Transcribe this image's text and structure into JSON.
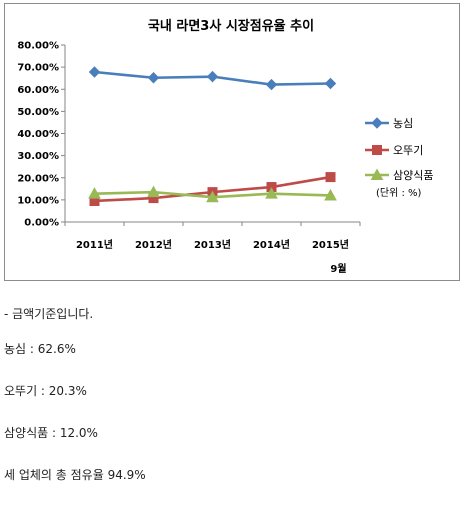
{
  "chart_data": {
    "type": "line",
    "title": "국내 라면3사 시장점유율 추이",
    "categories": [
      "2011년",
      "2012년",
      "2013년",
      "2014년",
      "2015년"
    ],
    "category_sublabels": [
      "",
      "",
      "",
      "",
      "9월"
    ],
    "ylim": [
      0,
      0.8
    ],
    "yticks": [
      "0.00%",
      "10.00%",
      "20.00%",
      "30.00%",
      "40.00%",
      "50.00%",
      "60.00%",
      "70.00%",
      "80.00%"
    ],
    "series": [
      {
        "name": "농심",
        "values": [
          0.678,
          0.652,
          0.657,
          0.621,
          0.626
        ],
        "color": "#4a7ebb",
        "marker": "diamond"
      },
      {
        "name": "오뚜기",
        "values": [
          0.095,
          0.108,
          0.135,
          0.158,
          0.203
        ],
        "color": "#be4b48",
        "marker": "square"
      },
      {
        "name": "삼양식품",
        "values": [
          0.128,
          0.135,
          0.112,
          0.128,
          0.12
        ],
        "color": "#98b954",
        "marker": "triangle"
      }
    ],
    "legend_position": "right",
    "unit_note": "(단위 : %)",
    "grid": false
  },
  "notes": [
    "- 금액기준입니다.",
    "농심 : 62.6%",
    "오뚜기 : 20.3%",
    "삼양식품 : 12.0%",
    "세 업체의 총 점유율 94.9%"
  ]
}
